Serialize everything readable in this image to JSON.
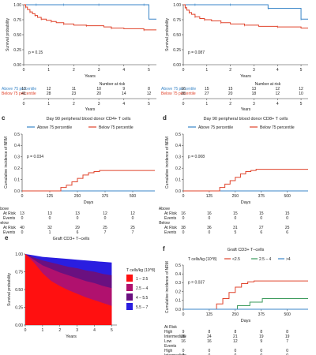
{
  "colors": {
    "above": "#3a86c8",
    "below": "#e0432b",
    "green": "#3a9a5b",
    "axis": "#333333"
  },
  "panels": [
    {
      "id": "a",
      "letter": "",
      "title": "",
      "type": "km_survival",
      "ylabel": "Survival probability",
      "xlabel": "Years",
      "ylim": [
        0,
        1.0
      ],
      "yticks": [
        "0.00",
        "0.25",
        "0.50",
        "0.75",
        "1.00"
      ],
      "xlim": [
        0,
        5.3
      ],
      "xticks": [
        "0",
        "1",
        "2",
        "3",
        "4",
        "5"
      ],
      "pvalue": "p = 0.15",
      "risk_header": "Number at risk",
      "risk_labels": [
        "Above 75 percentile",
        "Below 75 percentile"
      ],
      "risk_values": [
        [
          "13",
          "12",
          "11",
          "10",
          "9",
          "8"
        ],
        [
          "41",
          "28",
          "23",
          "20",
          "14",
          "12"
        ]
      ],
      "risk_xticks": [
        "0",
        "1",
        "2",
        "3",
        "4",
        "5"
      ],
      "risk_xlabel": "Years",
      "series": [
        {
          "key": "above",
          "x": [
            0,
            0.5,
            1.0,
            1.6,
            2.0,
            3.0,
            4.0,
            4.8,
            5.0,
            5.3
          ],
          "y": [
            1.0,
            1.0,
            1.0,
            1.0,
            1.0,
            1.0,
            1.0,
            1.0,
            0.76,
            0.76
          ]
        },
        {
          "key": "below",
          "x": [
            0,
            0.08,
            0.15,
            0.25,
            0.35,
            0.45,
            0.55,
            0.7,
            0.9,
            1.1,
            1.3,
            1.6,
            2.0,
            2.5,
            3.2,
            3.5,
            4.0,
            4.8,
            5.3
          ],
          "y": [
            1.0,
            0.96,
            0.92,
            0.88,
            0.85,
            0.82,
            0.79,
            0.76,
            0.74,
            0.72,
            0.7,
            0.68,
            0.66,
            0.65,
            0.63,
            0.61,
            0.6,
            0.58,
            0.58
          ]
        }
      ]
    },
    {
      "id": "b",
      "letter": "",
      "title": "",
      "type": "km_survival",
      "ylabel": "Survival probability",
      "xlabel": "Years",
      "ylim": [
        0,
        1.0
      ],
      "yticks": [
        "0.00",
        "0.25",
        "0.50",
        "0.75",
        "1.00"
      ],
      "xlim": [
        0,
        5.3
      ],
      "xticks": [
        "0",
        "1",
        "2",
        "3",
        "4",
        "5"
      ],
      "pvalue": "p = 0.087",
      "risk_header": "Number at risk",
      "risk_labels": [
        "Above 75 percentile",
        "Below 75 percentile"
      ],
      "risk_values": [
        [
          "16",
          "15",
          "15",
          "13",
          "12",
          "12"
        ],
        [
          "38",
          "27",
          "20",
          "18",
          "12",
          "10"
        ]
      ],
      "risk_xticks": [
        "0",
        "1",
        "2",
        "3",
        "4",
        "5"
      ],
      "risk_xlabel": "Years",
      "series": [
        {
          "key": "above",
          "x": [
            0,
            0.5,
            1.0,
            2.0,
            3.0,
            3.6,
            4.0,
            5.0,
            5.3
          ],
          "y": [
            1.0,
            1.0,
            1.0,
            1.0,
            1.0,
            0.94,
            0.94,
            0.76,
            0.76
          ]
        },
        {
          "key": "below",
          "x": [
            0,
            0.08,
            0.15,
            0.25,
            0.35,
            0.5,
            0.7,
            0.9,
            1.2,
            1.6,
            2.0,
            2.6,
            3.2,
            4.0,
            5.0,
            5.3
          ],
          "y": [
            1.0,
            0.95,
            0.91,
            0.87,
            0.84,
            0.8,
            0.77,
            0.75,
            0.73,
            0.7,
            0.68,
            0.66,
            0.64,
            0.63,
            0.61,
            0.61
          ]
        }
      ]
    },
    {
      "id": "c",
      "letter": "c",
      "title": "Day 90 peripheral blood donor CD4+ T cells",
      "type": "cumulative_incidence",
      "ylabel": "Cumulative incidence of NRM",
      "xlabel": "Days",
      "legend": [
        "Above 75 percentile",
        "Below 75 percentile"
      ],
      "ylim": [
        0,
        0.5
      ],
      "yticks": [
        "0.0",
        "0.1",
        "0.2",
        "0.3",
        "0.4",
        "0.5"
      ],
      "xlim": [
        0,
        600
      ],
      "xticks": [
        "0",
        "125",
        "250",
        "375",
        "500"
      ],
      "pvalue": "p = 0.034",
      "risk_groups": [
        {
          "name": "Above",
          "rows": [
            {
              "label": "At Risk",
              "values": [
                "13",
                "13",
                "13",
                "12",
                "12"
              ]
            },
            {
              "label": "Events",
              "values": [
                "0",
                "0",
                "0",
                "0",
                "0"
              ]
            }
          ]
        },
        {
          "name": "Below",
          "rows": [
            {
              "label": "At Risk",
              "values": [
                "40",
                "32",
                "29",
                "25",
                "25"
              ]
            },
            {
              "label": "Events",
              "values": [
                "0",
                "1",
                "6",
                "7",
                "7"
              ]
            }
          ]
        }
      ],
      "series": [
        {
          "key": "above",
          "x": [
            0,
            600
          ],
          "y": [
            0,
            0
          ]
        },
        {
          "key": "below",
          "x": [
            0,
            150,
            175,
            200,
            225,
            250,
            275,
            300,
            325,
            350,
            600
          ],
          "y": [
            0,
            0,
            0.03,
            0.05,
            0.08,
            0.11,
            0.14,
            0.16,
            0.17,
            0.18,
            0.18
          ]
        }
      ]
    },
    {
      "id": "d",
      "letter": "d",
      "title": "Day 90 peripheral blood donor CD8+ T cells",
      "type": "cumulative_incidence",
      "ylabel": "Cumulative incidence of NRM",
      "xlabel": "Days",
      "legend": [
        "Above 75 percentile",
        "Below 75 percentile"
      ],
      "ylim": [
        0,
        0.5
      ],
      "yticks": [
        "0.0",
        "0.1",
        "0.2",
        "0.3",
        "0.4",
        "0.5"
      ],
      "xlim": [
        0,
        600
      ],
      "xticks": [
        "0",
        "125",
        "250",
        "375",
        "500"
      ],
      "pvalue": "p = 0.008",
      "risk_groups": [
        {
          "name": "Above",
          "rows": [
            {
              "label": "At Risk",
              "values": [
                "16",
                "16",
                "15",
                "15",
                "15"
              ]
            },
            {
              "label": "Events",
              "values": [
                "0",
                "0",
                "0",
                "0",
                "0"
              ]
            }
          ]
        },
        {
          "name": "Below",
          "rows": [
            {
              "label": "At Risk",
              "values": [
                "38",
                "36",
                "31",
                "27",
                "25"
              ]
            },
            {
              "label": "Events",
              "values": [
                "0",
                "0",
                "5",
                "6",
                "6"
              ]
            }
          ]
        }
      ],
      "series": [
        {
          "key": "above",
          "x": [
            0,
            600
          ],
          "y": [
            0,
            0
          ]
        },
        {
          "key": "below",
          "x": [
            0,
            150,
            175,
            200,
            225,
            250,
            275,
            300,
            325,
            350,
            600
          ],
          "y": [
            0,
            0,
            0.03,
            0.06,
            0.09,
            0.12,
            0.15,
            0.17,
            0.18,
            0.19,
            0.19
          ]
        }
      ]
    },
    {
      "id": "e",
      "letter": "e",
      "title": "Graft CD3+ T–cells",
      "type": "stacked_survival",
      "ylabel": "Survival probability",
      "xlabel": "Years",
      "ylim": [
        0,
        1.0
      ],
      "yticks": [
        "0.00",
        "0.25",
        "0.50",
        "0.75",
        "1.00"
      ],
      "xlim": [
        0,
        5.3
      ],
      "xticks": [
        "0",
        "1",
        "2",
        "3",
        "4",
        "5"
      ],
      "legend_title": "T cells/kg (10^8)",
      "bands": [
        {
          "label": "1 – 2.5",
          "color": "#ff1010"
        },
        {
          "label": "2.5 – 4",
          "color": "#b0116e"
        },
        {
          "label": "4 – 5.5",
          "color": "#6a1080"
        },
        {
          "label": "5.5 – 7",
          "color": "#2a1ee0"
        }
      ],
      "x": [
        0,
        0.5,
        1.0,
        1.5,
        2.0,
        2.5,
        3.0,
        3.5,
        4.0,
        4.5,
        5.0
      ],
      "boundaries": [
        [
          1.0,
          0.88,
          0.73,
          0.62,
          0.55,
          0.49,
          0.44,
          0.39,
          0.35,
          0.31,
          0.27
        ],
        [
          1.0,
          0.92,
          0.84,
          0.79,
          0.74,
          0.7,
          0.66,
          0.62,
          0.59,
          0.55,
          0.52
        ],
        [
          1.0,
          0.95,
          0.91,
          0.88,
          0.85,
          0.82,
          0.8,
          0.77,
          0.75,
          0.72,
          0.7
        ],
        [
          1.0,
          0.98,
          0.96,
          0.95,
          0.94,
          0.93,
          0.92,
          0.91,
          0.9,
          0.89,
          0.88
        ]
      ]
    },
    {
      "id": "f",
      "letter": "f",
      "title": "Graft CD3+ T–cells",
      "type": "cumulative_incidence",
      "ylabel": "Cumulative incidence of NRM",
      "xlabel": "Days",
      "legend_title": "T cells/kg (10^8)",
      "legend": [
        "<2.5",
        "2.5 – 4",
        ">4"
      ],
      "ylim": [
        0,
        0.5
      ],
      "yticks": [
        "0.0",
        "0.1",
        "0.2",
        "0.3",
        "0.4",
        "0.5"
      ],
      "xlim": [
        0,
        600
      ],
      "xticks": [
        "0",
        "125",
        "250",
        "375",
        "500"
      ],
      "pvalue": "p = 0.037",
      "risk_groups": [
        {
          "name": "At Risk",
          "rows": [
            {
              "label": "High",
              "values": [
                "9",
                "8",
                "8",
                "8",
                "8"
              ]
            },
            {
              "label": "Intermediate",
              "values": [
                "26",
                "24",
                "21",
                "19",
                "19"
              ]
            },
            {
              "label": "Low",
              "values": [
                "16",
                "16",
                "12",
                "9",
                "7"
              ]
            }
          ]
        },
        {
          "name": "Events",
          "rows": [
            {
              "label": "High",
              "values": [
                "0",
                "0",
                "0",
                "0",
                "0"
              ]
            },
            {
              "label": "Intermediate",
              "values": [
                "0",
                "0",
                "0",
                "0",
                "0"
              ]
            }
          ]
        }
      ],
      "series": [
        {
          "key": "below",
          "x": [
            0,
            130,
            160,
            190,
            220,
            250,
            280,
            310,
            340,
            450,
            600
          ],
          "y": [
            0,
            0,
            0.06,
            0.12,
            0.19,
            0.25,
            0.29,
            0.31,
            0.32,
            0.32,
            0.32
          ]
        },
        {
          "key": "green",
          "x": [
            0,
            200,
            260,
            320,
            380,
            600
          ],
          "y": [
            0,
            0,
            0.04,
            0.08,
            0.12,
            0.12
          ]
        },
        {
          "key": "above",
          "x": [
            0,
            600
          ],
          "y": [
            0,
            0
          ]
        }
      ]
    }
  ]
}
